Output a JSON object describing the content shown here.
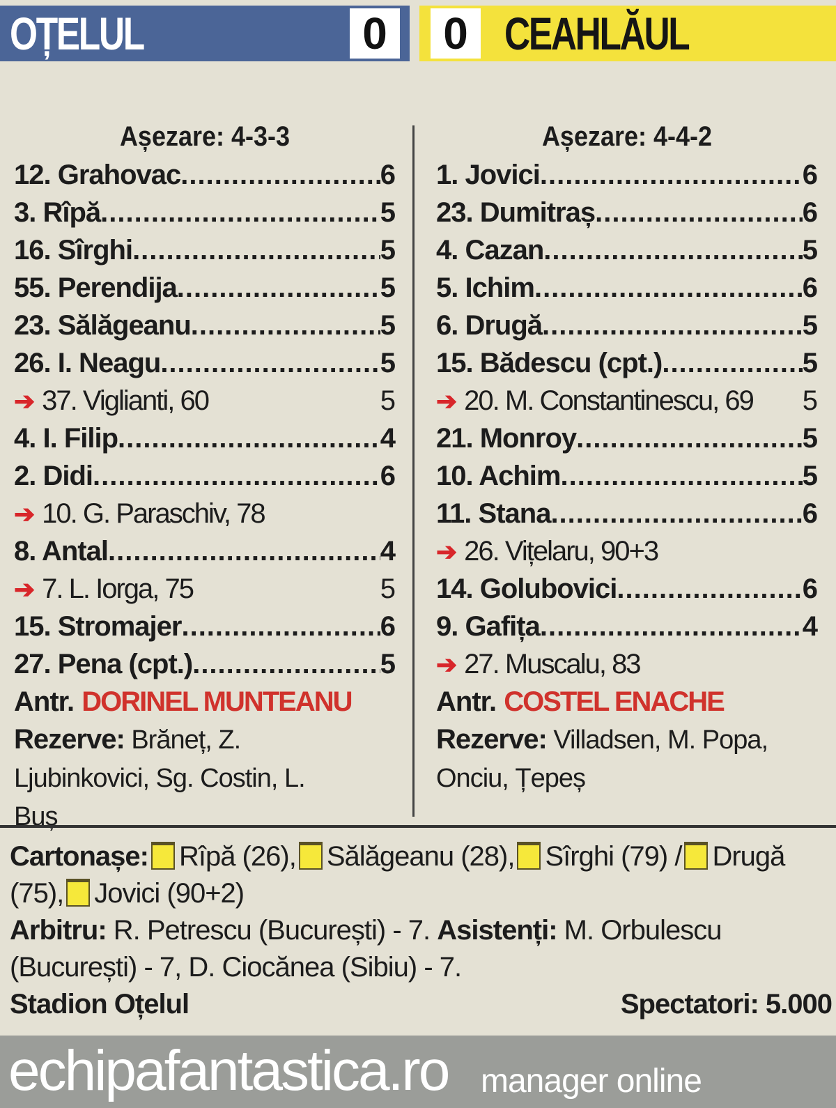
{
  "header": {
    "home_team": "OȚELUL",
    "home_score": "0",
    "away_score": "0",
    "away_team": "CEAHLĂUL",
    "home_color": "#4b6597",
    "away_color": "#f4e23c"
  },
  "home": {
    "formation": "Așezare: 4-3-3",
    "players": [
      {
        "name": "12. Grahovac",
        "rating": "6",
        "sub": false
      },
      {
        "name": "3. Rîpă",
        "rating": "5",
        "sub": false
      },
      {
        "name": "16. Sîrghi",
        "rating": "5",
        "sub": false
      },
      {
        "name": "55. Perendija",
        "rating": "5",
        "sub": false
      },
      {
        "name": "23. Sălăgeanu",
        "rating": "5",
        "sub": false
      },
      {
        "name": "26. I. Neagu",
        "rating": "5",
        "sub": false
      },
      {
        "name": "37. Viglianti, 60",
        "rating": "5",
        "sub": true
      },
      {
        "name": "4. I. Filip",
        "rating": "4",
        "sub": false
      },
      {
        "name": "2. Didi",
        "rating": "6",
        "sub": false
      },
      {
        "name": "10. G. Paraschiv, 78",
        "rating": "",
        "sub": true
      },
      {
        "name": "8. Antal",
        "rating": "4",
        "sub": false
      },
      {
        "name": "7. L. Iorga, 75",
        "rating": "5",
        "sub": true
      },
      {
        "name": "15. Stromajer",
        "rating": "6",
        "sub": false
      },
      {
        "name": "27. Pena (cpt.)",
        "rating": "5",
        "sub": false
      }
    ],
    "coach_label": "Antr.",
    "coach": "DORINEL MUNTEANU",
    "reserves_label": "Rezerve:",
    "reserves": "Brăneț,  Z. Ljubinkovici, Sg. Costin, L. Buș"
  },
  "away": {
    "formation": "Așezare: 4-4-2",
    "players": [
      {
        "name": "1. Jovici",
        "rating": "6",
        "sub": false
      },
      {
        "name": "23. Dumitraș",
        "rating": "6",
        "sub": false
      },
      {
        "name": "4. Cazan",
        "rating": "5",
        "sub": false
      },
      {
        "name": "5. Ichim",
        "rating": "6",
        "sub": false
      },
      {
        "name": "6. Drugă",
        "rating": "5",
        "sub": false
      },
      {
        "name": "15. Bădescu (cpt.)",
        "rating": "5",
        "sub": false
      },
      {
        "name": "20. M. Constantinescu, 69",
        "rating": "5",
        "sub": true
      },
      {
        "name": "21. Monroy",
        "rating": "5",
        "sub": false
      },
      {
        "name": "10. Achim",
        "rating": "5",
        "sub": false
      },
      {
        "name": "11. Stana",
        "rating": "6",
        "sub": false
      },
      {
        "name": "26. Vițelaru, 90+3",
        "rating": "",
        "sub": true
      },
      {
        "name": "14. Golubovici",
        "rating": "6",
        "sub": false
      },
      {
        "name": "9. Gafița",
        "rating": "4",
        "sub": false
      },
      {
        "name": "27. Muscalu, 83",
        "rating": "",
        "sub": true
      }
    ],
    "coach_label": "Antr.",
    "coach": "COSTEL ENACHE",
    "reserves_label": "Rezerve:",
    "reserves": "Villadsen, M. Popa, Onciu, Țepeș"
  },
  "match": {
    "cards_label": "Cartonașe:",
    "cards_home": [
      "Rîpă (26),",
      "Sălăgeanu (28),",
      "Sîrghi (79)"
    ],
    "cards_sep": "/",
    "cards_away": [
      "Drugă (75),",
      "Jovici (90+2)"
    ],
    "referee_label": "Arbitru:",
    "referee": "R. Petrescu (București) - 7.",
    "assistants_label": "Asistenți:",
    "assistants": "M. Orbulescu (București) - 7, D. Ciocănea (Sibiu) - 7.",
    "stadium": "Stadion Oțelul",
    "spectators": "Spectatori: 5.000"
  },
  "footer": {
    "site": "echipafantastica.ro",
    "tagline": "manager online"
  }
}
